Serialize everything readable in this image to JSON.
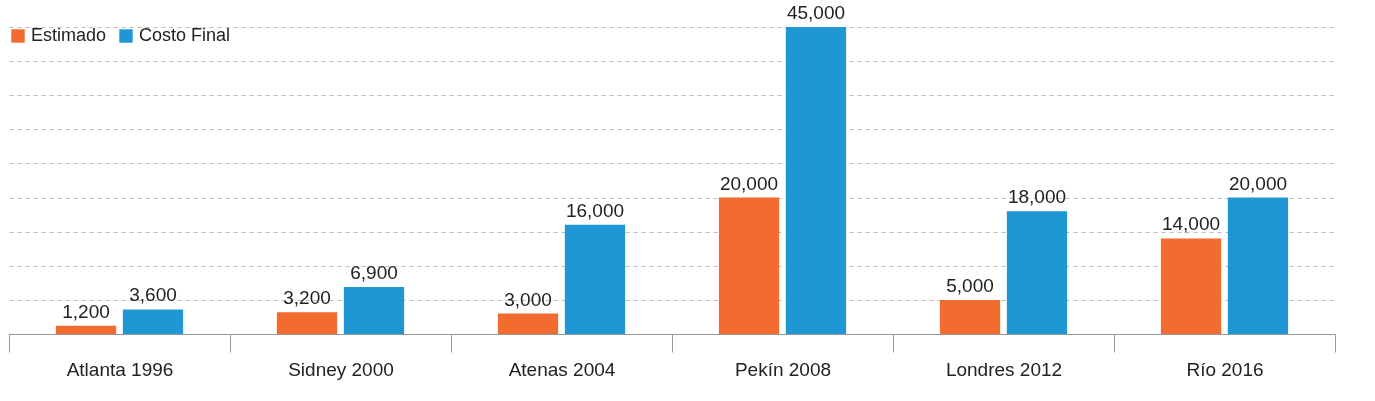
{
  "chart_data": {
    "type": "bar",
    "categories": [
      "Atlanta 1996",
      "Sidney 2000",
      "Atenas 2004",
      "Pekín 2008",
      "Londres 2012",
      "Río 2016"
    ],
    "series": [
      {
        "name": "Estimado",
        "color": "#f26b2f",
        "values": [
          1200,
          3200,
          3000,
          20000,
          5000,
          14000
        ],
        "value_labels": [
          "1,200",
          "3,200",
          "3,000",
          "20,000",
          "5,000",
          "14,000"
        ]
      },
      {
        "name": "Costo Final",
        "color": "#1f97d4",
        "values": [
          3600,
          6900,
          16000,
          45000,
          18000,
          20000
        ],
        "value_labels": [
          "3,600",
          "6,900",
          "16,000",
          "45,000",
          "18,000",
          "20,000"
        ]
      }
    ],
    "legend": "top left",
    "grid": "y",
    "tick_labels": "x"
  }
}
